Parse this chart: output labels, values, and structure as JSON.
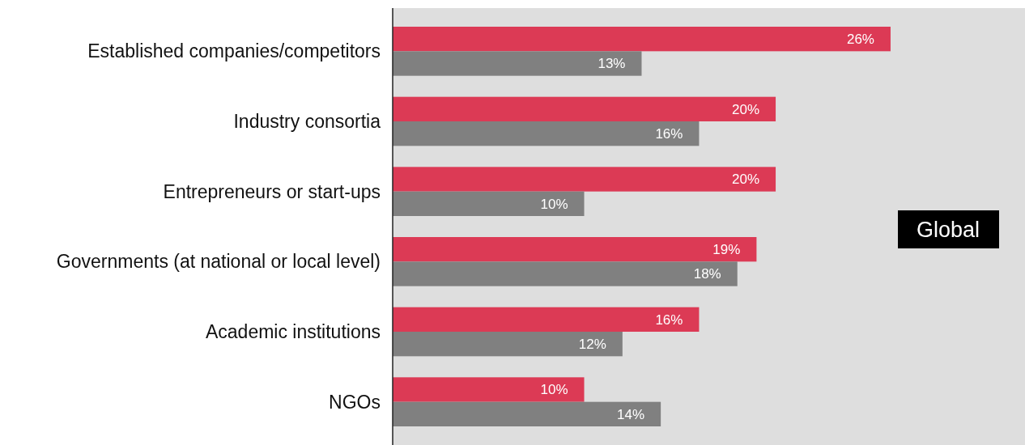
{
  "chart_data": {
    "type": "bar",
    "orientation": "horizontal",
    "categories": [
      "Established companies/competitors",
      "Industry consortia",
      "Entrepreneurs or start-ups",
      "Governments (at national or local level)",
      "Academic institutions",
      "NGOs"
    ],
    "series": [
      {
        "color": "#dc3a55",
        "values": [
          26,
          20,
          20,
          19,
          16,
          10
        ],
        "value_labels": [
          "26%",
          "20%",
          "20%",
          "19%",
          "16%",
          "10%"
        ]
      },
      {
        "color": "#808080",
        "values": [
          13,
          16,
          10,
          18,
          12,
          14
        ],
        "value_labels": [
          "13%",
          "16%",
          "10%",
          "18%",
          "12%",
          "14%"
        ]
      }
    ],
    "grid": false,
    "annotations": [
      "Global"
    ]
  }
}
